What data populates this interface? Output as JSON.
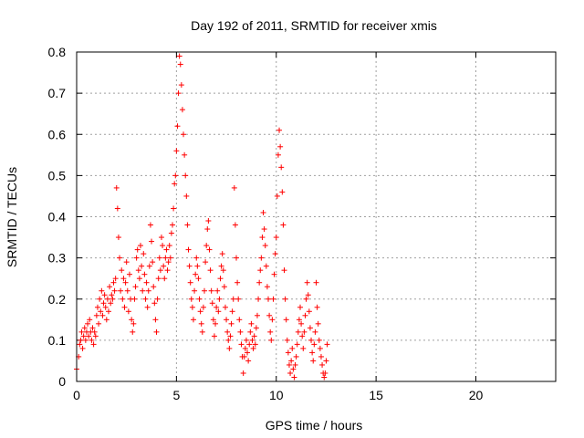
{
  "chart_data": {
    "type": "scatter",
    "title": "Day 192 of 2011, SRMTID for receiver xmis",
    "xlabel": "GPS time / hours",
    "ylabel": "SRMTID / TECUs",
    "xlim": [
      0,
      24
    ],
    "ylim": [
      0,
      0.8
    ],
    "xticks": [
      0,
      5,
      10,
      15,
      20
    ],
    "yticks": [
      0,
      0.1,
      0.2,
      0.3,
      0.4,
      0.5,
      0.6,
      0.7,
      0.8
    ],
    "grid": true,
    "marker": "+",
    "color": "#ff0000",
    "series": [
      {
        "name": "xmis",
        "x": [
          0.0,
          0.1,
          0.15,
          0.2,
          0.25,
          0.3,
          0.35,
          0.4,
          0.45,
          0.5,
          0.55,
          0.6,
          0.65,
          0.7,
          0.75,
          0.8,
          0.85,
          0.9,
          0.95,
          1.0,
          1.05,
          1.1,
          1.15,
          1.2,
          1.25,
          1.3,
          1.35,
          1.4,
          1.45,
          1.5,
          1.55,
          1.6,
          1.65,
          1.7,
          1.75,
          1.8,
          1.85,
          1.9,
          1.95,
          2.0,
          2.05,
          2.1,
          2.15,
          2.2,
          2.25,
          2.3,
          2.35,
          2.4,
          2.45,
          2.5,
          2.55,
          2.6,
          2.65,
          2.7,
          2.75,
          2.8,
          2.85,
          2.9,
          2.95,
          3.0,
          3.05,
          3.1,
          3.15,
          3.2,
          3.25,
          3.3,
          3.35,
          3.4,
          3.45,
          3.5,
          3.55,
          3.6,
          3.65,
          3.7,
          3.75,
          3.8,
          3.85,
          3.9,
          3.95,
          4.0,
          4.05,
          4.1,
          4.15,
          4.2,
          4.25,
          4.3,
          4.35,
          4.4,
          4.45,
          4.5,
          4.55,
          4.6,
          4.65,
          4.7,
          4.75,
          4.8,
          4.85,
          4.9,
          4.95,
          5.0,
          5.05,
          5.1,
          5.15,
          5.2,
          5.25,
          5.3,
          5.35,
          5.4,
          5.45,
          5.5,
          5.55,
          5.6,
          5.65,
          5.7,
          5.75,
          5.8,
          5.85,
          5.9,
          5.95,
          6.0,
          6.05,
          6.1,
          6.15,
          6.2,
          6.25,
          6.3,
          6.35,
          6.4,
          6.45,
          6.5,
          6.55,
          6.6,
          6.65,
          6.7,
          6.75,
          6.8,
          6.85,
          6.9,
          6.95,
          7.0,
          7.05,
          7.1,
          7.15,
          7.2,
          7.25,
          7.3,
          7.35,
          7.4,
          7.45,
          7.5,
          7.55,
          7.6,
          7.65,
          7.7,
          7.75,
          7.8,
          7.85,
          7.9,
          7.95,
          8.0,
          8.05,
          8.1,
          8.15,
          8.2,
          8.25,
          8.3,
          8.35,
          8.4,
          8.45,
          8.5,
          8.55,
          8.6,
          8.65,
          8.7,
          8.75,
          8.8,
          8.85,
          8.9,
          8.95,
          9.0,
          9.05,
          9.1,
          9.15,
          9.2,
          9.25,
          9.3,
          9.35,
          9.4,
          9.45,
          9.5,
          9.55,
          9.6,
          9.65,
          9.7,
          9.75,
          9.8,
          9.85,
          9.9,
          9.95,
          10.0,
          10.05,
          10.1,
          10.15,
          10.2,
          10.25,
          10.3,
          10.35,
          10.4,
          10.45,
          10.5,
          10.55,
          10.6,
          10.65,
          10.7,
          10.75,
          10.8,
          10.85,
          10.9,
          10.95,
          11.0,
          11.05,
          11.1,
          11.15,
          11.2,
          11.25,
          11.3,
          11.35,
          11.4,
          11.45,
          11.5,
          11.55,
          11.6,
          11.65,
          11.7,
          11.75,
          11.8,
          11.85,
          11.9,
          11.95,
          12.0,
          12.05,
          12.1,
          12.15,
          12.2,
          12.25,
          12.3,
          12.35,
          12.4,
          12.45,
          12.5,
          12.55
        ],
        "y": [
          0.03,
          0.06,
          0.09,
          0.1,
          0.12,
          0.08,
          0.11,
          0.13,
          0.1,
          0.12,
          0.14,
          0.11,
          0.15,
          0.12,
          0.1,
          0.13,
          0.09,
          0.12,
          0.11,
          0.16,
          0.18,
          0.14,
          0.2,
          0.17,
          0.22,
          0.16,
          0.19,
          0.21,
          0.18,
          0.15,
          0.2,
          0.17,
          0.23,
          0.19,
          0.21,
          0.2,
          0.24,
          0.22,
          0.25,
          0.47,
          0.42,
          0.35,
          0.3,
          0.22,
          0.27,
          0.2,
          0.25,
          0.18,
          0.24,
          0.29,
          0.22,
          0.17,
          0.26,
          0.2,
          0.15,
          0.12,
          0.14,
          0.2,
          0.23,
          0.3,
          0.32,
          0.27,
          0.25,
          0.33,
          0.28,
          0.22,
          0.31,
          0.26,
          0.2,
          0.24,
          0.18,
          0.22,
          0.28,
          0.38,
          0.34,
          0.29,
          0.23,
          0.19,
          0.15,
          0.12,
          0.2,
          0.25,
          0.3,
          0.27,
          0.35,
          0.33,
          0.28,
          0.25,
          0.3,
          0.32,
          0.27,
          0.29,
          0.33,
          0.3,
          0.36,
          0.38,
          0.42,
          0.48,
          0.5,
          0.56,
          0.62,
          0.7,
          0.79,
          0.77,
          0.72,
          0.66,
          0.6,
          0.55,
          0.5,
          0.45,
          0.38,
          0.32,
          0.28,
          0.24,
          0.2,
          0.18,
          0.15,
          0.22,
          0.26,
          0.3,
          0.28,
          0.25,
          0.2,
          0.17,
          0.14,
          0.12,
          0.18,
          0.22,
          0.29,
          0.33,
          0.37,
          0.39,
          0.32,
          0.27,
          0.22,
          0.19,
          0.15,
          0.11,
          0.14,
          0.18,
          0.22,
          0.17,
          0.2,
          0.25,
          0.28,
          0.31,
          0.27,
          0.23,
          0.18,
          0.15,
          0.12,
          0.1,
          0.08,
          0.11,
          0.14,
          0.17,
          0.2,
          0.47,
          0.38,
          0.3,
          0.24,
          0.2,
          0.15,
          0.12,
          0.09,
          0.06,
          0.02,
          0.06,
          0.08,
          0.1,
          0.07,
          0.05,
          0.09,
          0.12,
          0.14,
          0.1,
          0.08,
          0.11,
          0.09,
          0.13,
          0.16,
          0.2,
          0.24,
          0.27,
          0.3,
          0.35,
          0.41,
          0.37,
          0.33,
          0.28,
          0.23,
          0.2,
          0.16,
          0.12,
          0.1,
          0.15,
          0.2,
          0.26,
          0.31,
          0.35,
          0.45,
          0.55,
          0.61,
          0.57,
          0.52,
          0.46,
          0.38,
          0.27,
          0.2,
          0.15,
          0.1,
          0.07,
          0.04,
          0.02,
          0.05,
          0.08,
          0.03,
          0.01,
          0.04,
          0.06,
          0.09,
          0.12,
          0.15,
          0.18,
          0.14,
          0.11,
          0.08,
          0.12,
          0.16,
          0.2,
          0.24,
          0.21,
          0.17,
          0.13,
          0.1,
          0.07,
          0.05,
          0.09,
          0.12,
          0.24,
          0.18,
          0.14,
          0.1,
          0.08,
          0.06,
          0.04,
          0.02,
          0.01,
          0.02,
          0.05,
          0.09
        ]
      }
    ]
  }
}
